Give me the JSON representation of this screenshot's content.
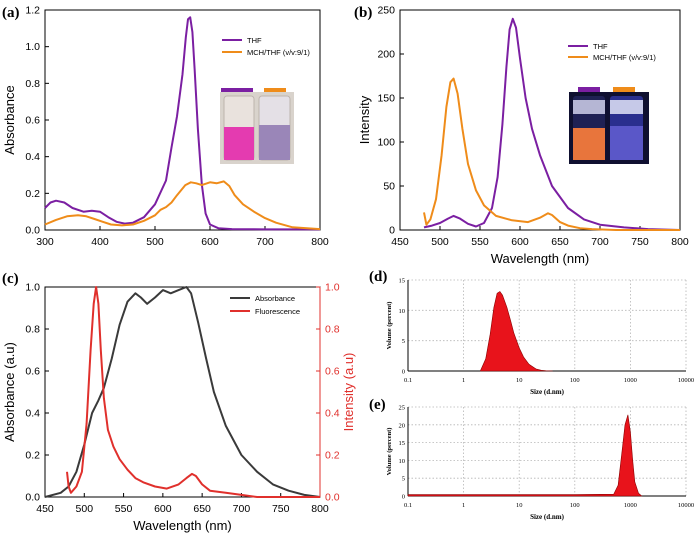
{
  "colors": {
    "purple": "#7b1fa2",
    "orange": "#ef8c1a",
    "dark": "#3a3a3a",
    "red": "#e0302c",
    "dls_red": "#e8131b"
  },
  "panels": {
    "a": {
      "label": "(a)"
    },
    "b": {
      "label": "(b)"
    },
    "c": {
      "label": "(c)"
    },
    "d": {
      "label": "(d)"
    },
    "e": {
      "label": "(e)"
    }
  },
  "chart_data": [
    {
      "id": "a",
      "type": "line",
      "title": "",
      "xlabel": "",
      "ylabel": "Absorbance",
      "xlim": [
        300,
        800
      ],
      "ylim": [
        0,
        1.2
      ],
      "x_ticks": [
        "300",
        "400",
        "500",
        "600",
        "700",
        "800"
      ],
      "y_ticks": [
        "0.0",
        "0.2",
        "0.4",
        "0.6",
        "0.8",
        "1.0",
        "1.2"
      ],
      "legend": "top-right",
      "legend_entries": [
        "THF",
        "MCH/THF (v/v:9/1)"
      ],
      "inset": "photo of two vials (THF: magenta solution, MCH/THF: violet solution)",
      "series": [
        {
          "name": "THF",
          "color": "#7b1fa2",
          "x": [
            300,
            310,
            320,
            335,
            350,
            370,
            385,
            400,
            415,
            430,
            445,
            460,
            480,
            500,
            520,
            530,
            540,
            550,
            556,
            560,
            564,
            568,
            572,
            578,
            585,
            592,
            600,
            615,
            640,
            700,
            800
          ],
          "y": [
            0.12,
            0.15,
            0.16,
            0.15,
            0.12,
            0.1,
            0.105,
            0.1,
            0.07,
            0.045,
            0.035,
            0.04,
            0.07,
            0.14,
            0.27,
            0.45,
            0.62,
            0.85,
            1.05,
            1.15,
            1.16,
            1.08,
            0.88,
            0.55,
            0.25,
            0.09,
            0.03,
            0.01,
            0.005,
            0.003,
            0.003
          ]
        },
        {
          "name": "MCH/THF (v/v:9/1)",
          "color": "#ef8c1a",
          "x": [
            300,
            320,
            340,
            360,
            375,
            390,
            405,
            420,
            440,
            460,
            480,
            500,
            510,
            520,
            530,
            540,
            555,
            565,
            575,
            585,
            600,
            612,
            625,
            635,
            645,
            660,
            680,
            700,
            720,
            750,
            800
          ],
          "y": [
            0.03,
            0.055,
            0.075,
            0.08,
            0.075,
            0.06,
            0.045,
            0.03,
            0.025,
            0.03,
            0.05,
            0.08,
            0.11,
            0.125,
            0.15,
            0.19,
            0.245,
            0.26,
            0.255,
            0.245,
            0.26,
            0.255,
            0.265,
            0.24,
            0.19,
            0.14,
            0.1,
            0.065,
            0.04,
            0.015,
            0.005
          ]
        }
      ]
    },
    {
      "id": "b",
      "type": "line",
      "title": "",
      "xlabel": "Wavelength (nm)",
      "ylabel": "Intensity",
      "xlim": [
        450,
        800
      ],
      "ylim": [
        0,
        250
      ],
      "x_ticks": [
        "450",
        "500",
        "550",
        "600",
        "650",
        "700",
        "750",
        "800"
      ],
      "y_ticks": [
        "0",
        "50",
        "100",
        "150",
        "200",
        "250"
      ],
      "legend": "top-right",
      "legend_entries": [
        "THF",
        "MCH/THF (v/v:9/1)"
      ],
      "inset": "photo of two vials under UV (THF: orange emission, MCH/THF: blue emission)",
      "series": [
        {
          "name": "THF",
          "color": "#7b1fa2",
          "x": [
            480,
            490,
            500,
            510,
            517,
            525,
            535,
            545,
            555,
            565,
            572,
            578,
            583,
            587,
            591,
            595,
            600,
            607,
            615,
            625,
            640,
            660,
            680,
            700,
            730,
            760,
            800
          ],
          "y": [
            3,
            5,
            8,
            13,
            16,
            13,
            7,
            4,
            8,
            25,
            60,
            120,
            185,
            228,
            240,
            230,
            195,
            150,
            115,
            85,
            50,
            25,
            12,
            6,
            3,
            1,
            0
          ]
        },
        {
          "name": "MCH/THF (v/v:9/1)",
          "color": "#ef8c1a",
          "x": [
            480,
            483,
            488,
            495,
            502,
            508,
            513,
            517,
            522,
            528,
            535,
            545,
            555,
            570,
            590,
            610,
            625,
            635,
            640,
            650,
            660,
            675,
            690,
            720,
            760,
            800
          ],
          "y": [
            20,
            6,
            12,
            35,
            85,
            140,
            168,
            172,
            155,
            115,
            75,
            45,
            28,
            16,
            11,
            9,
            14,
            19,
            17,
            9,
            5,
            2,
            1,
            0,
            0,
            0
          ]
        }
      ]
    },
    {
      "id": "c",
      "type": "line",
      "title": "",
      "xlabel": "Wavelength (nm)",
      "ylabel": "Absorbance (a.u)",
      "ylabel_right": "Intensity (a.u)",
      "xlim": [
        450,
        800
      ],
      "ylim": [
        0,
        1.0
      ],
      "x_ticks": [
        "450",
        "500",
        "550",
        "600",
        "650",
        "700",
        "750",
        "800"
      ],
      "y_ticks": [
        "0.0",
        "0.2",
        "0.4",
        "0.6",
        "0.8",
        "1.0"
      ],
      "y2_ticks": [
        "0.0",
        "0.2",
        "0.4",
        "0.6",
        "0.8",
        "1.0"
      ],
      "legend": "top-right",
      "legend_entries": [
        "Absorbance",
        "Fluorescence"
      ],
      "series": [
        {
          "name": "Absorbance",
          "color": "#3a3a3a",
          "axis": "left",
          "x": [
            450,
            470,
            480,
            490,
            500,
            510,
            518,
            525,
            535,
            545,
            555,
            565,
            572,
            580,
            590,
            600,
            610,
            620,
            630,
            636,
            645,
            655,
            665,
            680,
            700,
            720,
            740,
            760,
            780,
            800
          ],
          "y": [
            0.0,
            0.02,
            0.05,
            0.12,
            0.25,
            0.4,
            0.46,
            0.52,
            0.66,
            0.82,
            0.93,
            0.97,
            0.95,
            0.92,
            0.95,
            0.985,
            0.97,
            0.985,
            1.0,
            0.97,
            0.83,
            0.66,
            0.5,
            0.34,
            0.2,
            0.12,
            0.06,
            0.03,
            0.01,
            0.0
          ]
        },
        {
          "name": "Fluorescence",
          "color": "#e0302c",
          "axis": "right",
          "x": [
            478,
            480,
            483,
            490,
            497,
            503,
            508,
            512,
            515,
            518,
            521,
            525,
            530,
            537,
            545,
            555,
            565,
            575,
            590,
            605,
            620,
            630,
            637,
            642,
            650,
            660,
            680,
            700,
            720,
            750,
            800
          ],
          "y": [
            0.12,
            0.05,
            0.02,
            0.05,
            0.12,
            0.35,
            0.7,
            0.92,
            1.0,
            0.92,
            0.7,
            0.47,
            0.32,
            0.24,
            0.18,
            0.13,
            0.09,
            0.07,
            0.05,
            0.04,
            0.06,
            0.09,
            0.11,
            0.1,
            0.06,
            0.03,
            0.02,
            0.01,
            0.0,
            0.0,
            0.0
          ]
        }
      ]
    },
    {
      "id": "d",
      "type": "area",
      "xlabel": "Size (d.nm)",
      "ylabel": "Volume (percent)",
      "xscale": "log",
      "xlim": [
        0.1,
        10000
      ],
      "ylim": [
        0,
        15
      ],
      "x_ticks": [
        "0.1",
        "1",
        "10",
        "100",
        "1000",
        "10000"
      ],
      "y_ticks": [
        "0",
        "5",
        "10",
        "15"
      ],
      "grid": true,
      "series": [
        {
          "color": "#e8131b",
          "x": [
            2.0,
            2.5,
            3.0,
            3.5,
            4.0,
            4.5,
            5.0,
            6.0,
            7.0,
            8.0,
            10,
            12,
            15,
            20,
            25,
            30,
            40
          ],
          "y": [
            0,
            2,
            6,
            10.5,
            12.8,
            13.1,
            12.5,
            10.5,
            8.3,
            6.3,
            3.8,
            2.3,
            1.1,
            0.35,
            0.12,
            0.05,
            0
          ]
        }
      ]
    },
    {
      "id": "e",
      "type": "area",
      "xlabel": "Size (d.nm)",
      "ylabel": "Volume (percent)",
      "xscale": "log",
      "xlim": [
        0.1,
        10000
      ],
      "ylim": [
        0,
        25
      ],
      "x_ticks": [
        "0.1",
        "1",
        "10",
        "100",
        "1000",
        "10000"
      ],
      "y_ticks": [
        "0",
        "5",
        "10",
        "15",
        "20",
        "25"
      ],
      "grid": true,
      "series": [
        {
          "color": "#e8131b",
          "x": [
            0.1,
            1,
            10,
            100,
            500,
            600,
            700,
            800,
            900,
            1000,
            1100,
            1200,
            1400,
            1600
          ],
          "y": [
            0.4,
            0.4,
            0.4,
            0.4,
            0.5,
            3,
            12,
            20,
            22.8,
            18,
            10,
            4,
            0.8,
            0
          ]
        }
      ]
    }
  ]
}
